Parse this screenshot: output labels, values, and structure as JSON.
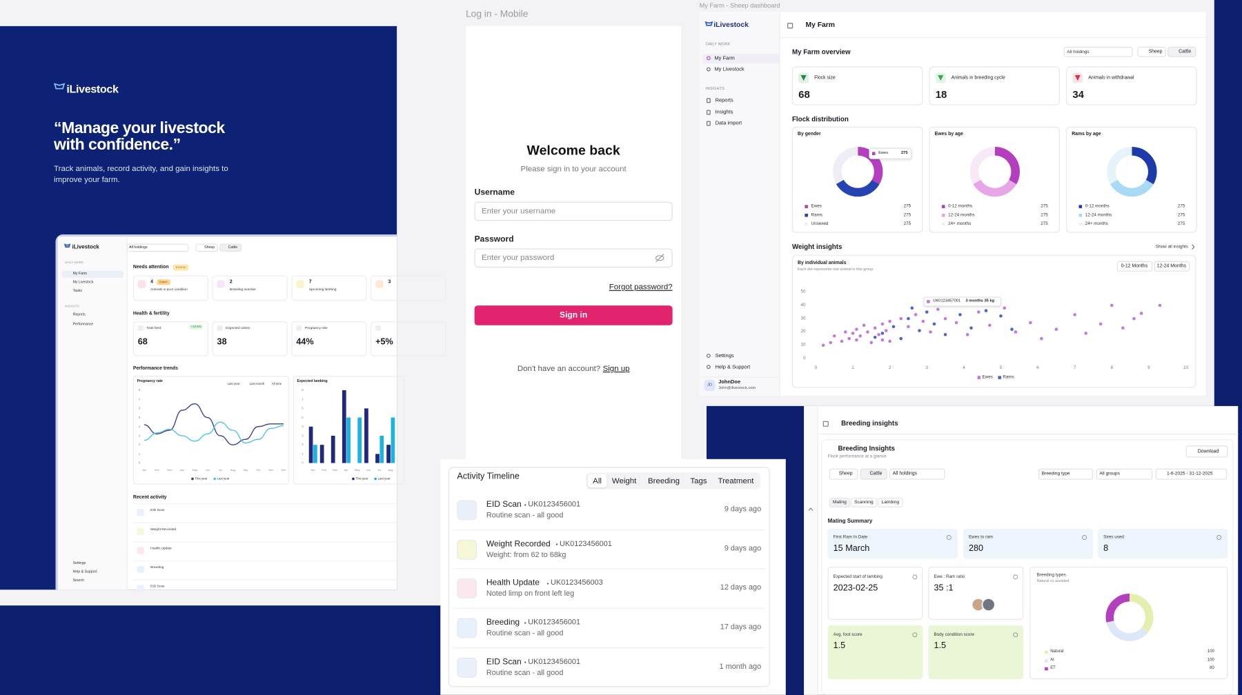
{
  "hero": {
    "brand": "iLivestock",
    "quote": "“Manage your livestock with confidence.”",
    "subtitle": "Track animals, record activity, and gain insights to improve your farm."
  },
  "hero_mockup": {
    "brand": "iLivestock",
    "holdings": "All holdings",
    "species": [
      "Sheep",
      "Cattle"
    ],
    "nav": [
      "DAILY WORK",
      "My Farm",
      "My Livestock",
      "Tasks",
      "INSIGHTS",
      "Reports",
      "Performance"
    ],
    "nav_footer": [
      "Settings",
      "Help & Support",
      "Search"
    ],
    "needs_attention": {
      "title": "Needs attention",
      "badge": "8 items",
      "cards": [
        {
          "value": 4,
          "tag": "Urgent",
          "label": "Animals in poor condition"
        },
        {
          "value": 2,
          "label": "Breeding overdue"
        },
        {
          "value": 7,
          "label": "Upcoming lambing"
        },
        {
          "value": 3
        }
      ]
    },
    "health": {
      "title": "Health & fertility",
      "cards": [
        {
          "label": "Total herd",
          "change": "+10.5%",
          "value": 68
        },
        {
          "label": "Expected calves",
          "value": 38
        },
        {
          "label": "Pregnancy rate",
          "value": "44%"
        },
        {
          "value": "+5%"
        }
      ]
    },
    "trends_title": "Performance trends",
    "line_chart": {
      "type": "line",
      "title": "Pregnancy rate",
      "filters": [
        "Last year",
        "Last month",
        "All time"
      ],
      "categories": [
        "Jan",
        "Feb",
        "Mar",
        "Apr",
        "May",
        "Jun",
        "Jul",
        "Aug",
        "Sep",
        "Oct",
        "Nov",
        "Dec"
      ],
      "ylim": [
        0,
        8
      ],
      "yticks": [
        0,
        1,
        2,
        3,
        4,
        5,
        6,
        7,
        8
      ],
      "series": [
        {
          "name": "This year",
          "color": "#3b3f8f",
          "values": [
            4.2,
            3.2,
            3.6,
            5.8,
            6.5,
            5.0,
            3.0,
            2.0,
            2.6,
            4.0,
            4.3,
            4.3
          ]
        },
        {
          "name": "Last year",
          "color": "#4cc4e2",
          "values": [
            2.5,
            3.3,
            3.7,
            3.0,
            2.4,
            3.2,
            4.5,
            3.6,
            2.2,
            2.6,
            3.8,
            4.1
          ]
        }
      ]
    },
    "bar_chart": {
      "type": "bar",
      "title": "Expected lambing",
      "categories": [
        "Jan",
        "Feb",
        "Mar",
        "Apr",
        "May",
        "Jun",
        "Jul",
        "Aug"
      ],
      "ylim": [
        0,
        8
      ],
      "yticks": [
        0,
        1,
        2,
        3,
        4,
        5,
        6,
        7,
        8
      ],
      "series": [
        {
          "name": "This year",
          "color": "#1f2a7a",
          "values": [
            4,
            2,
            3,
            8,
            0,
            6,
            1,
            2
          ]
        },
        {
          "name": "Last year",
          "color": "#20b2dc",
          "values": [
            2,
            0,
            0,
            5,
            5,
            0,
            3,
            5
          ]
        }
      ]
    },
    "recent": {
      "title": "Recent activity",
      "items": [
        "EID Scan",
        "Weight Recorded",
        "Health Update",
        "Breeding",
        "EID Scan"
      ]
    }
  },
  "login": {
    "figma_label": "Log in - Mobile",
    "title": "Welcome back",
    "subtitle": "Please sign in to your account",
    "username_label": "Username",
    "username_placeholder": "Enter your username",
    "password_label": "Password",
    "password_placeholder": "Enter your password",
    "forgot": "Forgot password?",
    "sign_in": "Sign in",
    "no_account": "Don't have an account?",
    "sign_up": "Sign up"
  },
  "dashboard": {
    "figma_label": "My Farm - Sheep dashboard",
    "brand": "iLivestock",
    "header": "My Farm",
    "nav": {
      "daily_work": "DAILY WORK",
      "daily_items": [
        "My Farm",
        "My Livestock"
      ],
      "insights": "INSIGHTS",
      "insight_items": [
        "Reports",
        "Insights",
        "Data import"
      ],
      "footer": [
        "Settings",
        "Help & Support"
      ]
    },
    "user": {
      "initials": "JD",
      "name": "JohnDoe",
      "email": "John@ilivestock.com"
    },
    "overview_title": "My Farm overview",
    "holdings": "All holdings",
    "species": [
      "Sheep",
      "Cattle"
    ],
    "stats": [
      {
        "label": "Flock size",
        "value": 68,
        "color": "#1f8a3a"
      },
      {
        "label": "Animals in breeding cycle",
        "value": 18,
        "color": "#3aa84a"
      },
      {
        "label": "Animals in withdrawal",
        "value": 34,
        "color": "#d8344a"
      }
    ],
    "distribution_title": "Flock distribution",
    "donuts": [
      {
        "type": "pie",
        "title": "By gender",
        "tooltip": {
          "label": "Ewes",
          "value": 275
        },
        "categories": [
          "Ewes",
          "Rams",
          "Unsexed"
        ],
        "values": [
          275,
          275,
          275
        ],
        "colors": [
          "#b43fbe",
          "#2743b2",
          "#eeeef4"
        ]
      },
      {
        "type": "pie",
        "title": "Ewes by age",
        "categories": [
          "0-12 months",
          "12-24 months",
          "24+ months"
        ],
        "values": [
          275,
          275,
          275
        ],
        "colors": [
          "#b43fbe",
          "#e7a6e8",
          "#f8e9f8"
        ]
      },
      {
        "type": "pie",
        "title": "Rams by age",
        "categories": [
          "0-12 months",
          "12-24 months",
          "24+ months"
        ],
        "values": [
          275,
          275,
          275
        ],
        "colors": [
          "#1e3aa8",
          "#a9d9f4",
          "#e6f3fb"
        ]
      }
    ],
    "weight": {
      "title": "Weight insights",
      "show_all": "Show all insights",
      "ranges": [
        "0-12 Months",
        "12-24 Months"
      ],
      "chart": {
        "type": "scatter",
        "title": "By individual animals",
        "subtitle": "Each dot represents one animal in this group",
        "tooltip": {
          "id": "UK0123457001",
          "text": "3 months 35 kg"
        },
        "xlim": [
          0,
          10
        ],
        "xticks": [
          0,
          1,
          2,
          3,
          4,
          5,
          6,
          7,
          8,
          9,
          10
        ],
        "ylim": [
          0,
          50
        ],
        "yticks": [
          0,
          10,
          20,
          30,
          40,
          50
        ],
        "grid": false,
        "series": [
          {
            "name": "Ewes",
            "color": "#c27ad9",
            "x": [
              0.2,
              0.4,
              0.5,
              0.7,
              0.8,
              0.9,
              1.0,
              1.1,
              1.1,
              1.2,
              1.3,
              1.4,
              1.5,
              1.6,
              1.7,
              1.8,
              1.8,
              1.9,
              2.0,
              2.0,
              2.3,
              2.5,
              2.7,
              2.9,
              3.1,
              3.3,
              3.5,
              3.8,
              4.1,
              4.4,
              4.7,
              5.1,
              5.4,
              5.8,
              6.1,
              6.5,
              7.0,
              7.3,
              7.7,
              8.0,
              8.3,
              8.6,
              8.8,
              9.3
            ],
            "y": [
              10,
              12,
              17,
              13,
              20,
              15,
              19,
              22,
              14,
              17,
              25,
              20,
              12,
              23,
              18,
              26,
              14,
              21,
              28,
              13,
              30,
              24,
              33,
              28,
              20,
              37,
              30,
              27,
              18,
              35,
              25,
              38,
              20,
              27,
              15,
              22,
              33,
              19,
              26,
              40,
              23,
              30,
              34,
              40
            ]
          },
          {
            "name": "Rams",
            "color": "#4a66c6",
            "x": [
              1.6,
              1.8,
              2.1,
              2.3,
              2.5,
              2.6,
              2.8,
              3.0,
              3.2,
              3.5,
              3.9,
              4.2,
              4.6,
              5.0,
              5.3
            ],
            "y": [
              16,
              19,
              24,
              15,
              30,
              38,
              21,
              35,
              26,
              18,
              33,
              23,
              36,
              32,
              22
            ]
          }
        ]
      }
    }
  },
  "activity": {
    "title": "Activity Timeline",
    "tabs": [
      "All",
      "Weight",
      "Breeding",
      "Tags",
      "Treatment"
    ],
    "items": [
      {
        "title": "EID Scan",
        "id": "UK0123456001",
        "note": "Routine scan - all good",
        "time": "9 days ago",
        "color": "#eaf1fb"
      },
      {
        "title": "Weight Recorded",
        "id": "UK0123456001",
        "note": "Weight: from 62 to 68kg",
        "time": "9 days ago",
        "color": "#f6f7d6"
      },
      {
        "title": "Health Update",
        "id": "UK0123456003",
        "note": "Noted limp on front left leg",
        "time": "12 days ago",
        "color": "#fbe8ee"
      },
      {
        "title": "Breeding",
        "id": "UK0123456001",
        "note": "Routine scan - all good",
        "time": "17 days ago",
        "color": "#e6f1fb"
      },
      {
        "title": "EID Scan",
        "id": "UK0123456001",
        "note": "Routine scan - all good",
        "time": "1 month ago",
        "color": "#eaf1fb"
      }
    ]
  },
  "breeding": {
    "header": "Breeding insights",
    "title": "Breeding Insights",
    "subtitle": "Flock performance at a glance",
    "download": "Download",
    "filters": [
      "Sheep",
      "Cattle",
      "All holdings"
    ],
    "filters_right": [
      "Breeding type",
      "All groups",
      "1-6-2025 - 31-12-2025"
    ],
    "tabs": [
      "Mating",
      "Scanning",
      "Lambing"
    ],
    "summary_title": "Mating Summary",
    "cards": [
      {
        "label": "First Ram In Date",
        "value": "15 March"
      },
      {
        "label": "Ewes to ram",
        "value": 280
      },
      {
        "label": "Sires used",
        "value": 8
      }
    ],
    "lambing": {
      "label": "Expected start of lambing",
      "value": "2023-02-25"
    },
    "ratio": {
      "label": "Ewe : Ram ratio",
      "value": "35 :1"
    },
    "scores": [
      {
        "label": "Avg. foot score",
        "value": 1.5
      },
      {
        "label": "Body condition score",
        "value": 1.5
      }
    ],
    "types": {
      "type": "pie",
      "title": "Breeding types",
      "subtitle": "Natural vs assisted",
      "categories": [
        "Natural",
        "AI",
        "ET"
      ],
      "values": [
        100,
        100,
        80
      ],
      "colors": [
        "#e4efae",
        "#dce7f7",
        "#b43fbe"
      ]
    }
  }
}
